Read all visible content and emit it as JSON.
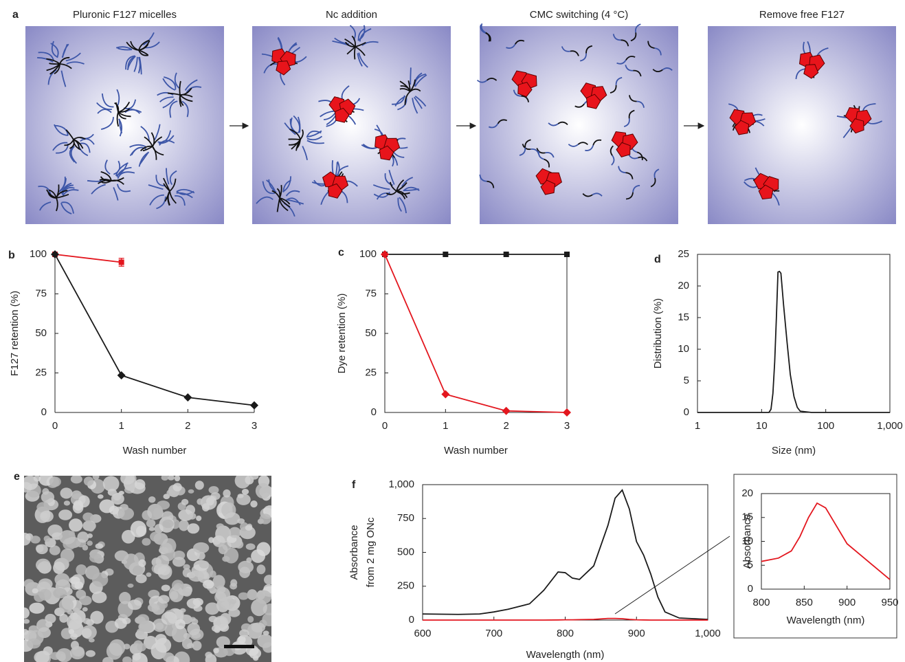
{
  "diagram": {
    "panel": "a",
    "steps": [
      "Pluronic F127 micelles",
      "Nc addition",
      "CMC switching (4 °C)",
      "Remove free F127"
    ]
  },
  "image": {
    "panel": "e"
  },
  "chart_data": [
    {
      "type": "line",
      "panel": "b",
      "x": [
        0,
        1,
        2,
        3
      ],
      "xlim": [
        0,
        3
      ],
      "ylim": [
        0,
        100
      ],
      "xticks": [
        0,
        1,
        2,
        3
      ],
      "yticks": [
        0,
        25,
        50,
        75,
        100
      ],
      "xlabel": "Wash number",
      "ylabel": "F127 retention (%)",
      "series": [
        {
          "color": "#e3161e",
          "marker": "square",
          "values": [
            100,
            95,
            null,
            null
          ],
          "errors": [
            null,
            2.5,
            null,
            null
          ]
        },
        {
          "color": "#1a1a1a",
          "marker": "diamond",
          "values": [
            100,
            23.5,
            9.5,
            4.5
          ]
        }
      ]
    },
    {
      "type": "line",
      "panel": "c",
      "x": [
        0,
        1,
        2,
        3
      ],
      "xlim": [
        0,
        3
      ],
      "ylim": [
        0,
        100
      ],
      "xticks": [
        0,
        1,
        2,
        3
      ],
      "yticks": [
        0,
        25,
        50,
        75,
        100
      ],
      "xlabel": "Wash number",
      "ylabel": "Dye retention (%)",
      "series": [
        {
          "color": "#1a1a1a",
          "marker": "square",
          "values": [
            100,
            100,
            100,
            100
          ]
        },
        {
          "color": "#e3161e",
          "marker": "diamond",
          "values": [
            100,
            11.5,
            1,
            0
          ]
        }
      ]
    },
    {
      "type": "line",
      "panel": "d",
      "xscale": "log",
      "x": [
        1,
        10,
        13,
        14,
        15,
        16,
        17,
        18,
        19,
        20,
        22,
        25,
        28,
        32,
        36,
        40,
        60,
        100,
        1000
      ],
      "xlim": [
        1,
        1000
      ],
      "ylim": [
        0,
        25
      ],
      "xticks": [
        1,
        10,
        100,
        {
          "value": 1000,
          "label": "1,000"
        }
      ],
      "yticks": [
        0,
        5,
        10,
        15,
        20,
        25
      ],
      "xlabel": "Size (nm)",
      "ylabel": "Distribution (%)",
      "series": [
        {
          "color": "#1a1a1a",
          "values": [
            0,
            0,
            0,
            0.5,
            3,
            8,
            15,
            22.2,
            22.3,
            22,
            17,
            11,
            6,
            2.5,
            0.8,
            0.2,
            0,
            0,
            0
          ]
        }
      ]
    },
    {
      "type": "line",
      "panel": "f",
      "x": [
        600,
        650,
        680,
        700,
        720,
        750,
        770,
        790,
        800,
        810,
        820,
        840,
        860,
        870,
        880,
        890,
        900,
        910,
        920,
        930,
        940,
        960,
        1000
      ],
      "xlim": [
        600,
        1000
      ],
      "ylim": [
        0,
        1000
      ],
      "xticks": [
        600,
        700,
        800,
        900,
        {
          "value": 1000,
          "label": "1,000"
        }
      ],
      "yticks": [
        0,
        250,
        500,
        750,
        {
          "value": 1000,
          "label": "1,000"
        }
      ],
      "xlabel": "Wavelength (nm)",
      "ylabel": [
        "Absorbance",
        "from 2 mg ONc"
      ],
      "series": [
        {
          "color": "#1a1a1a",
          "values": [
            45,
            42,
            45,
            60,
            80,
            120,
            220,
            355,
            350,
            310,
            300,
            400,
            700,
            900,
            960,
            820,
            580,
            480,
            340,
            170,
            60,
            15,
            5
          ]
        },
        {
          "color": "#e3161e",
          "values": [
            0,
            0,
            0,
            0,
            0,
            0,
            0,
            1,
            2,
            2,
            3,
            5,
            12,
            12,
            10,
            5,
            2,
            1,
            0,
            0,
            0,
            0,
            0
          ]
        }
      ]
    },
    {
      "type": "line",
      "x": [
        800,
        820,
        835,
        845,
        855,
        865,
        875,
        885,
        900,
        920,
        950
      ],
      "xlim": [
        800,
        950
      ],
      "ylim": [
        0,
        20
      ],
      "xticks": [
        800,
        850,
        900,
        950
      ],
      "yticks": [
        0,
        5,
        10,
        15,
        20
      ],
      "xlabel": "Wavelength (nm)",
      "ylabel": "Absorbance",
      "series": [
        {
          "color": "#e3161e",
          "values": [
            5.8,
            6.5,
            8,
            11,
            15,
            18,
            17,
            14,
            9.5,
            6.5,
            2
          ]
        }
      ]
    }
  ]
}
